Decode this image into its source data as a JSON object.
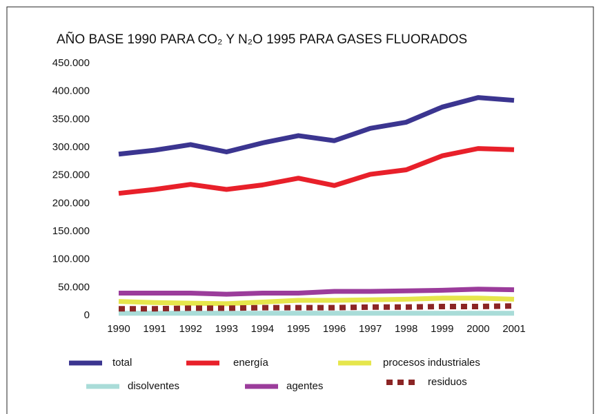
{
  "chart_data": {
    "type": "line",
    "title": "AÑO BASE 1990 PARA CO₂ Y N₂O 1995 PARA GASES FLUORADOS",
    "categories": [
      "1990",
      "1991",
      "1992",
      "1993",
      "1994",
      "1995",
      "1996",
      "1997",
      "1998",
      "1999",
      "2000",
      "2001"
    ],
    "series": [
      {
        "name": "total",
        "color": "#3b3590",
        "values": [
          288000,
          295000,
          305000,
          292000,
          308000,
          321000,
          312000,
          334000,
          345000,
          372000,
          389000,
          384000
        ]
      },
      {
        "name": "energía",
        "color": "#e8202a",
        "values": [
          218000,
          225000,
          234000,
          225000,
          233000,
          245000,
          232000,
          252000,
          260000,
          285000,
          298000,
          296000
        ]
      },
      {
        "name": "procesos industriales",
        "color": "#e6e64c",
        "values": [
          25000,
          23000,
          22000,
          21000,
          24000,
          27000,
          27000,
          28000,
          29000,
          31000,
          31000,
          29000
        ]
      },
      {
        "name": "disolventes",
        "color": "#a9dcd8",
        "values": [
          4000,
          4000,
          4000,
          4000,
          4000,
          4000,
          4000,
          4000,
          4000,
          4000,
          4000,
          4000
        ]
      },
      {
        "name": "agentes",
        "color": "#9b3c9b",
        "values": [
          40000,
          40000,
          40000,
          38000,
          40000,
          40000,
          43000,
          43000,
          44000,
          45000,
          47000,
          46000
        ]
      },
      {
        "name": "residuos",
        "color": "#8b2525",
        "values": [
          12000,
          12000,
          13000,
          13000,
          14000,
          14000,
          14000,
          15000,
          15000,
          16000,
          16000,
          17000
        ]
      }
    ],
    "ylim": [
      0,
      450000
    ],
    "yticks": [
      0,
      {
        "value": 50000,
        "label": "50.000"
      },
      {
        "value": 100000,
        "label": "100.000"
      },
      {
        "value": 150000,
        "label": "150.000"
      },
      {
        "value": 200000,
        "label": "200.000"
      },
      {
        "value": 250000,
        "label": "250.000"
      },
      {
        "value": 300000,
        "label": "300.000"
      },
      {
        "value": 350000,
        "label": "350.000"
      },
      {
        "value": 400000,
        "label": "400.000"
      },
      {
        "value": 450000,
        "label": "450.000"
      }
    ]
  }
}
